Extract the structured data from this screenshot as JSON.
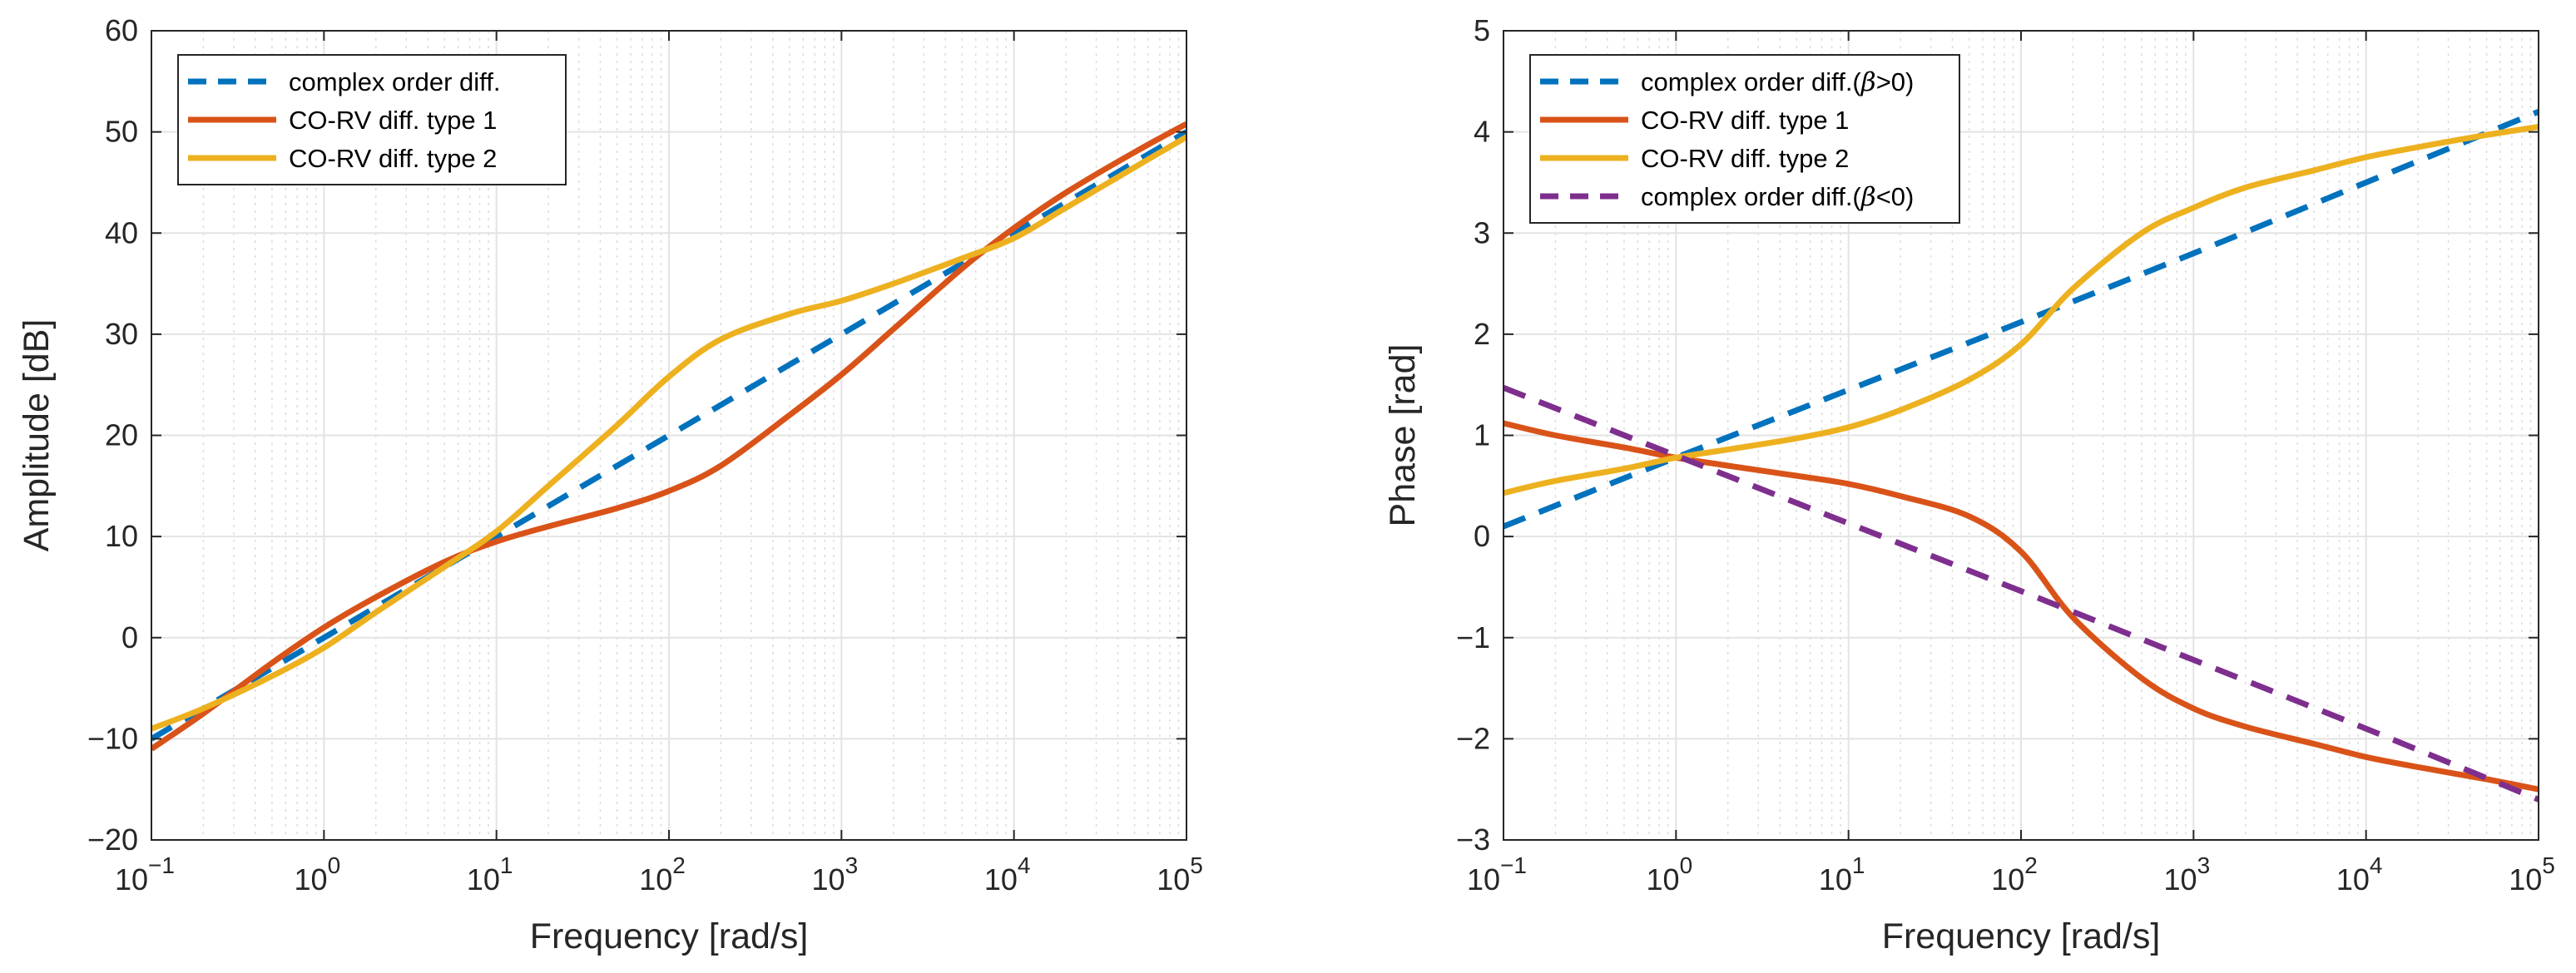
{
  "chart_data": [
    {
      "type": "line",
      "xscale": "log",
      "xlim": [
        0.1,
        100000
      ],
      "ylim": [
        -20,
        60
      ],
      "xlabel": "Frequency [rad/s]",
      "ylabel": "Amplitude [dB]",
      "grid": true,
      "minor_grid": true,
      "legend_location": "top-left",
      "x_ticks": [
        {
          "base": "10",
          "exp": "−1"
        },
        {
          "base": "10",
          "exp": "0"
        },
        {
          "base": "10",
          "exp": "1"
        },
        {
          "base": "10",
          "exp": "2"
        },
        {
          "base": "10",
          "exp": "3"
        },
        {
          "base": "10",
          "exp": "4"
        },
        {
          "base": "10",
          "exp": "5"
        }
      ],
      "y_ticks": [
        "−20",
        "−10",
        "0",
        "10",
        "20",
        "30",
        "40",
        "50",
        "60"
      ],
      "series": [
        {
          "name": "complex order diff.",
          "color": "#0072BD",
          "style": "dashed",
          "x": [
            0.1,
            1,
            10,
            100,
            1000,
            10000,
            100000
          ],
          "y": [
            -10,
            0,
            10,
            20,
            30,
            40,
            50
          ]
        },
        {
          "name": "CO-RV diff. type 1",
          "color": "#D95319",
          "style": "solid",
          "x": [
            0.1,
            0.2,
            0.5,
            1,
            2,
            5,
            10,
            20,
            50,
            100,
            200,
            500,
            1000,
            2000,
            5000,
            10000,
            20000,
            50000,
            100000
          ],
          "y": [
            -11,
            -7.5,
            -2.5,
            1,
            4,
            7.5,
            9.5,
            11,
            12.8,
            14.5,
            17,
            22,
            26,
            30.5,
            36.5,
            40.5,
            44,
            48,
            50.8
          ]
        },
        {
          "name": "CO-RV diff. type 2",
          "color": "#EDB120",
          "style": "solid",
          "x": [
            0.1,
            0.2,
            0.5,
            1,
            2,
            5,
            10,
            20,
            50,
            100,
            200,
            500,
            1000,
            2000,
            5000,
            10000,
            20000,
            50000,
            100000
          ],
          "y": [
            -9,
            -7,
            -3.8,
            -1,
            2.5,
            7,
            10.5,
            15,
            21,
            25.8,
            29.5,
            32,
            33.3,
            35,
            37.5,
            39.5,
            42.5,
            46.5,
            49.5
          ]
        }
      ]
    },
    {
      "type": "line",
      "xscale": "log",
      "xlim": [
        0.1,
        100000
      ],
      "ylim": [
        -3,
        5
      ],
      "xlabel": "Frequency [rad/s]",
      "ylabel": "Phase [rad]",
      "grid": true,
      "minor_grid": true,
      "legend_location": "top-left",
      "x_ticks": [
        {
          "base": "10",
          "exp": "−1"
        },
        {
          "base": "10",
          "exp": "0"
        },
        {
          "base": "10",
          "exp": "1"
        },
        {
          "base": "10",
          "exp": "2"
        },
        {
          "base": "10",
          "exp": "3"
        },
        {
          "base": "10",
          "exp": "4"
        },
        {
          "base": "10",
          "exp": "5"
        }
      ],
      "y_ticks": [
        "−3",
        "−2",
        "−1",
        "0",
        "1",
        "2",
        "3",
        "4",
        "5"
      ],
      "series": [
        {
          "name": "complex order diff.(β>0)",
          "name_prefix": "complex order diff.(",
          "name_greek": "β",
          "name_suffix": ">0)",
          "color": "#0072BD",
          "style": "dashed",
          "x": [
            0.1,
            1,
            10,
            100,
            1000,
            10000,
            100000
          ],
          "y": [
            0.1,
            0.78,
            1.45,
            2.12,
            2.8,
            3.5,
            4.2
          ]
        },
        {
          "name": "CO-RV diff. type 1",
          "color": "#D95319",
          "style": "solid",
          "x": [
            0.1,
            0.2,
            0.5,
            1,
            2,
            5,
            10,
            20,
            50,
            100,
            200,
            500,
            1000,
            2000,
            5000,
            10000,
            20000,
            50000,
            100000
          ],
          "y": [
            1.12,
            1.0,
            0.88,
            0.78,
            0.7,
            0.6,
            0.52,
            0.4,
            0.2,
            -0.15,
            -0.8,
            -1.4,
            -1.7,
            -1.88,
            -2.05,
            -2.18,
            -2.28,
            -2.4,
            -2.5
          ]
        },
        {
          "name": "CO-RV diff. type 2",
          "color": "#EDB120",
          "style": "solid",
          "x": [
            0.1,
            0.2,
            0.5,
            1,
            2,
            5,
            10,
            20,
            50,
            100,
            200,
            500,
            1000,
            2000,
            5000,
            10000,
            20000,
            50000,
            100000
          ],
          "y": [
            0.43,
            0.55,
            0.67,
            0.78,
            0.86,
            0.97,
            1.08,
            1.25,
            1.55,
            1.9,
            2.45,
            3.0,
            3.25,
            3.45,
            3.62,
            3.75,
            3.85,
            3.97,
            4.05
          ]
        },
        {
          "name": "complex order diff.(β<0)",
          "name_prefix": "complex order diff.(",
          "name_greek": "β",
          "name_suffix": "<0)",
          "color": "#7E2F8E",
          "style": "dashed",
          "x": [
            0.1,
            1,
            10,
            100,
            1000,
            10000,
            100000
          ],
          "y": [
            1.47,
            0.8,
            0.13,
            -0.54,
            -1.22,
            -1.9,
            -2.6
          ]
        }
      ]
    }
  ]
}
